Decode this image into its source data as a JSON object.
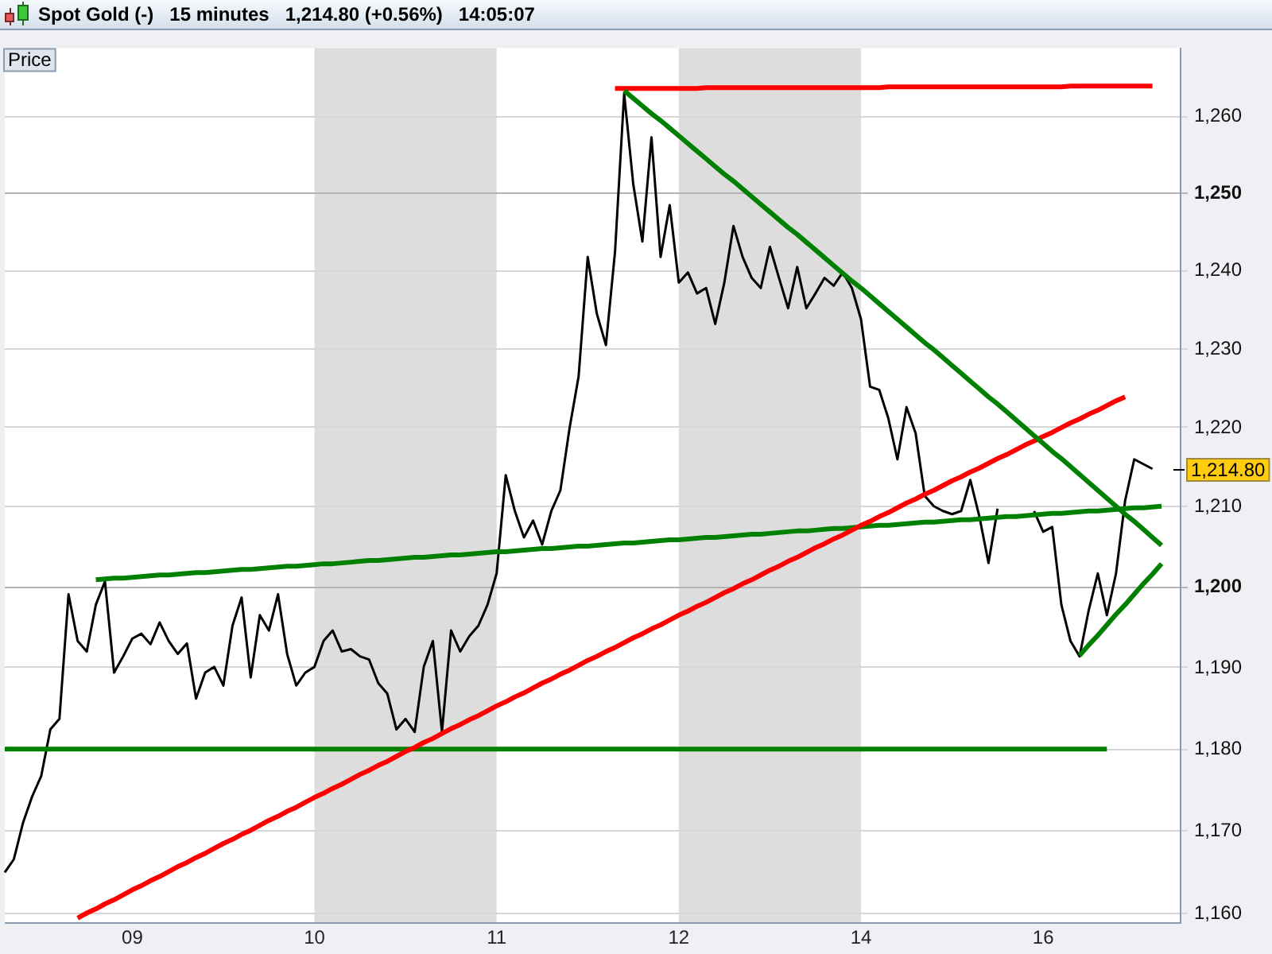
{
  "chart_data": {
    "type": "line",
    "title": "Spot Gold (-)   15 minutes   1,214.80 (+0.56%)   14:05:07",
    "annotations": [
      "Price",
      "1,214.80"
    ],
    "categories": [
      null,
      null,
      null,
      null,
      null,
      null,
      null,
      null,
      null,
      null,
      null,
      null,
      null,
      null,
      "09",
      null,
      null,
      null,
      null,
      null,
      null,
      null,
      null,
      null,
      null,
      null,
      null,
      null,
      null,
      null,
      null,
      null,
      null,
      null,
      "10",
      null,
      null,
      null,
      null,
      null,
      null,
      null,
      null,
      null,
      null,
      null,
      null,
      null,
      null,
      null,
      null,
      null,
      null,
      null,
      "11",
      null,
      null,
      null,
      null,
      null,
      null,
      null,
      null,
      null,
      null,
      null,
      null,
      null,
      null,
      null,
      null,
      null,
      null,
      null,
      "12",
      null,
      null,
      null,
      null,
      null,
      null,
      null,
      null,
      null,
      null,
      null,
      null,
      null,
      null,
      null,
      null,
      null,
      null,
      null,
      "14",
      null,
      null,
      null,
      null,
      null,
      null,
      null,
      null,
      null,
      null,
      null,
      null,
      null,
      null,
      null,
      null,
      null,
      null,
      null,
      "16",
      null,
      null,
      null,
      null,
      null,
      null,
      null,
      null,
      null,
      null,
      null,
      null,
      null,
      null,
      null
    ],
    "ylim": [
      1159,
      1269
    ],
    "yticks": [
      {
        "value": 1160,
        "label": "1,160"
      },
      {
        "value": 1170,
        "label": "1,170"
      },
      {
        "value": 1180,
        "label": "1,180"
      },
      {
        "value": 1190,
        "label": "1,190"
      },
      {
        "value": 1200,
        "label": "1,200"
      },
      {
        "value": 1210,
        "label": "1,210"
      },
      {
        "value": 1220,
        "label": "1,220"
      },
      {
        "value": 1230,
        "label": "1,230"
      },
      {
        "value": 1240,
        "label": "1,240"
      },
      {
        "value": 1250,
        "label": "1,250"
      },
      {
        "value": 1260,
        "label": "1,260"
      }
    ],
    "log": "y",
    "grid": "y",
    "bands": [
      {
        "axis": "x",
        "from": "10",
        "to": "11",
        "color": "#dddddd"
      },
      {
        "axis": "x",
        "from": "12",
        "to": "14",
        "color": "#dddddd"
      }
    ],
    "series": [
      {
        "color": "#000000",
        "values": [
          1165.0,
          1166.6,
          1171.0,
          1174.2,
          1176.7,
          1182.4,
          1183.7,
          1199.1,
          1193.3,
          1192.0,
          1197.8,
          1200.7,
          1189.4,
          1191.4,
          1193.6,
          1194.2,
          1192.9,
          1195.6,
          1193.3,
          1191.7,
          1193.0,
          1186.2,
          1189.4,
          1190.1,
          1187.8,
          1195.2,
          1198.7,
          1188.8,
          1196.5,
          1194.6,
          1199.1,
          1191.7,
          1187.8,
          1189.4,
          1190.1,
          1193.3,
          1194.6,
          1192.0,
          1192.3,
          1191.4,
          1191.0,
          1188.1,
          1186.8,
          1182.4,
          1183.7,
          1182.1,
          1190.1,
          1193.3,
          1182.1,
          1194.6,
          1192.0,
          1193.9,
          1195.2,
          1197.8,
          1201.7,
          1214.0,
          1209.5,
          1206.2,
          1208.3,
          1205.3,
          1209.5,
          1212.1,
          1219.9,
          1226.5,
          1241.8,
          1234.5,
          1230.5,
          1242.5,
          1263.0,
          1251.2,
          1243.8,
          1257.3,
          1241.8,
          1248.5,
          1238.5,
          1239.8,
          1237.1,
          1237.8,
          1233.2,
          1238.5,
          1245.8,
          1241.8,
          1239.1,
          1237.8,
          1243.1,
          1239.1,
          1235.2,
          1240.5,
          1235.2,
          1237.1,
          1239.1,
          1238.1,
          1239.8,
          1237.8,
          1233.8,
          1225.2,
          1224.8,
          1221.2,
          1216.0,
          1222.6,
          1219.3,
          1211.4,
          1210.1,
          1209.5,
          1209.1,
          1209.5,
          1213.4,
          1208.8,
          1203.0,
          1209.8,
          null,
          null,
          null,
          1209.5,
          1206.9,
          1207.5,
          1197.8,
          1193.3,
          1191.4,
          1197.1,
          1201.7,
          1196.5,
          1201.7,
          1210.8,
          1216.0,
          1215.4,
          1214.8,
          null,
          null,
          null
        ]
      },
      {
        "color": "#008000",
        "values": [
          1180,
          1180,
          1180,
          1180,
          1180,
          1180,
          1180,
          1180,
          1180,
          1180,
          1180,
          1180,
          1180,
          1180,
          1180,
          1180,
          1180,
          1180,
          1180,
          1180,
          1180,
          1180,
          1180,
          1180,
          1180,
          1180,
          1180,
          1180,
          1180,
          1180,
          1180,
          1180,
          1180,
          1180,
          1180,
          1180,
          1180,
          1180,
          1180,
          1180,
          1180,
          1180,
          1180,
          1180,
          1180,
          1180,
          1180,
          1180,
          1180,
          1180,
          1180,
          1180,
          1180,
          1180,
          1180,
          1180,
          1180,
          1180,
          1180,
          1180,
          1180,
          1180,
          1180,
          1180,
          1180,
          1180,
          1180,
          1180,
          1180,
          1180,
          1180,
          1180,
          1180,
          1180,
          1180,
          1180,
          1180,
          1180,
          1180,
          1180,
          1180,
          1180,
          1180,
          1180,
          1180,
          1180,
          1180,
          1180,
          1180,
          1180,
          1180,
          1180,
          1180,
          1180,
          1180,
          1180,
          1180,
          1180,
          1180,
          1180,
          1180,
          1180,
          1180,
          1180,
          1180,
          1180,
          1180,
          1180,
          1180,
          1180,
          1180,
          1180,
          1180,
          1180,
          1180,
          1180,
          1180,
          1180,
          1180,
          1180,
          1180,
          1180,
          null,
          null,
          null,
          null,
          null,
          null,
          null,
          null
        ]
      },
      {
        "color": "#008000",
        "values": [
          null,
          null,
          null,
          null,
          null,
          null,
          null,
          null,
          null,
          null,
          1200.9,
          1201.0,
          1201.1,
          1201.1,
          1201.2,
          1201.3,
          1201.4,
          1201.5,
          1201.5,
          1201.6,
          1201.7,
          1201.8,
          1201.8,
          1201.9,
          1202.0,
          1202.1,
          1202.2,
          1202.2,
          1202.3,
          1202.4,
          1202.5,
          1202.6,
          1202.6,
          1202.7,
          1202.8,
          1202.9,
          1202.9,
          1203.0,
          1203.1,
          1203.2,
          1203.3,
          1203.3,
          1203.4,
          1203.5,
          1203.6,
          1203.7,
          1203.7,
          1203.8,
          1203.9,
          1204.0,
          1204.0,
          1204.1,
          1204.2,
          1204.3,
          1204.4,
          1204.4,
          1204.5,
          1204.6,
          1204.7,
          1204.8,
          1204.8,
          1204.9,
          1205.0,
          1205.1,
          1205.1,
          1205.2,
          1205.3,
          1205.4,
          1205.5,
          1205.5,
          1205.6,
          1205.7,
          1205.8,
          1205.9,
          1205.9,
          1206.0,
          1206.1,
          1206.2,
          1206.2,
          1206.3,
          1206.4,
          1206.5,
          1206.6,
          1206.6,
          1206.7,
          1206.8,
          1206.9,
          1207.0,
          1207.0,
          1207.1,
          1207.2,
          1207.3,
          1207.3,
          1207.4,
          1207.5,
          1207.6,
          1207.7,
          1207.7,
          1207.8,
          1207.9,
          1208.0,
          1208.1,
          1208.1,
          1208.2,
          1208.3,
          1208.4,
          1208.4,
          1208.5,
          1208.6,
          1208.7,
          1208.8,
          1208.8,
          1208.9,
          1209.0,
          1209.1,
          1209.2,
          1209.2,
          1209.3,
          1209.4,
          1209.5,
          1209.5,
          1209.6,
          1209.7,
          1209.8,
          1209.9,
          1209.9,
          1210.0,
          1210.1,
          null,
          null
        ]
      },
      {
        "color": "#ff0000",
        "values": [
          null,
          null,
          null,
          null,
          null,
          null,
          null,
          null,
          1159.5,
          1160.1,
          1160.6,
          1161.2,
          1161.7,
          1162.3,
          1162.9,
          1163.4,
          1164.0,
          1164.5,
          1165.1,
          1165.7,
          1166.2,
          1166.8,
          1167.3,
          1167.9,
          1168.5,
          1169.0,
          1169.6,
          1170.1,
          1170.7,
          1171.3,
          1171.8,
          1172.4,
          1172.9,
          1173.5,
          1174.1,
          1174.6,
          1175.2,
          1175.7,
          1176.3,
          1176.9,
          1177.4,
          1178.0,
          1178.5,
          1179.1,
          1179.7,
          1180.2,
          1180.8,
          1181.3,
          1181.9,
          1182.5,
          1183.0,
          1183.6,
          1184.1,
          1184.7,
          1185.3,
          1185.8,
          1186.4,
          1186.9,
          1187.5,
          1188.1,
          1188.6,
          1189.2,
          1189.7,
          1190.3,
          1190.9,
          1191.4,
          1192.0,
          1192.5,
          1193.1,
          1193.7,
          1194.2,
          1194.8,
          1195.3,
          1195.9,
          1196.5,
          1197.0,
          1197.6,
          1198.1,
          1198.7,
          1199.3,
          1199.8,
          1200.4,
          1200.9,
          1201.5,
          1202.1,
          1202.6,
          1203.2,
          1203.7,
          1204.3,
          1204.9,
          1205.4,
          1206.0,
          1206.5,
          1207.1,
          1207.7,
          1208.2,
          1208.8,
          1209.3,
          1209.9,
          1210.5,
          1211.0,
          1211.6,
          1212.1,
          1212.7,
          1213.3,
          1213.8,
          1214.4,
          1214.9,
          1215.5,
          1216.1,
          1216.6,
          1217.2,
          1217.8,
          1218.3,
          1218.9,
          1219.4,
          1220.0,
          1220.6,
          1221.1,
          1221.7,
          1222.2,
          1222.8,
          1223.4,
          1223.9,
          null,
          null,
          null,
          null,
          null,
          null
        ]
      },
      {
        "color": "#ff0000",
        "values": [
          null,
          null,
          null,
          null,
          null,
          null,
          null,
          null,
          null,
          null,
          null,
          null,
          null,
          null,
          null,
          null,
          null,
          null,
          null,
          null,
          null,
          null,
          null,
          null,
          null,
          null,
          null,
          null,
          null,
          null,
          null,
          null,
          null,
          null,
          null,
          null,
          null,
          null,
          null,
          null,
          null,
          null,
          null,
          null,
          null,
          null,
          null,
          null,
          null,
          null,
          null,
          null,
          null,
          null,
          null,
          null,
          null,
          null,
          null,
          null,
          null,
          null,
          null,
          null,
          null,
          null,
          null,
          1263.7,
          1263.7,
          1263.7,
          1263.7,
          1263.7,
          1263.7,
          1263.7,
          1263.7,
          1263.7,
          1263.7,
          1263.8,
          1263.8,
          1263.8,
          1263.8,
          1263.8,
          1263.8,
          1263.8,
          1263.8,
          1263.8,
          1263.8,
          1263.8,
          1263.8,
          1263.8,
          1263.8,
          1263.8,
          1263.8,
          1263.8,
          1263.8,
          1263.8,
          1263.8,
          1263.9,
          1263.9,
          1263.9,
          1263.9,
          1263.9,
          1263.9,
          1263.9,
          1263.9,
          1263.9,
          1263.9,
          1263.9,
          1263.9,
          1263.9,
          1263.9,
          1263.9,
          1263.9,
          1263.9,
          1263.9,
          1263.9,
          1263.9,
          1264.0,
          1264.0,
          1264.0,
          1264.0,
          1264.0,
          1264.0,
          1264.0,
          1264.0,
          1264.0,
          1264.0,
          null,
          null,
          null
        ]
      },
      {
        "color": "#008000",
        "values": [
          null,
          null,
          null,
          null,
          null,
          null,
          null,
          null,
          null,
          null,
          null,
          null,
          null,
          null,
          null,
          null,
          null,
          null,
          null,
          null,
          null,
          null,
          null,
          null,
          null,
          null,
          null,
          null,
          null,
          null,
          null,
          null,
          null,
          null,
          null,
          null,
          null,
          null,
          null,
          null,
          null,
          null,
          null,
          null,
          null,
          null,
          null,
          null,
          null,
          null,
          null,
          null,
          null,
          null,
          null,
          null,
          null,
          null,
          null,
          null,
          null,
          null,
          null,
          null,
          null,
          null,
          null,
          null,
          1263.4,
          1262.4,
          1261.4,
          1260.4,
          1259.5,
          1258.5,
          1257.5,
          1256.5,
          1255.5,
          1254.5,
          1253.5,
          1252.5,
          1251.6,
          1250.6,
          1249.6,
          1248.6,
          1247.6,
          1246.6,
          1245.6,
          1244.7,
          1243.7,
          1242.7,
          1241.7,
          1240.7,
          1239.7,
          1238.7,
          1237.8,
          1236.8,
          1235.8,
          1234.8,
          1233.8,
          1232.8,
          1231.8,
          1230.8,
          1229.9,
          1228.9,
          1227.9,
          1226.9,
          1225.9,
          1224.9,
          1223.9,
          1223.0,
          1222.0,
          1221.0,
          1220.0,
          1219.0,
          1218.0,
          1217.0,
          1216.1,
          1215.1,
          1214.1,
          1213.1,
          1212.1,
          1211.1,
          1210.1,
          1209.1,
          1208.2,
          1207.2,
          1206.2,
          1205.2,
          null,
          null
        ]
      },
      {
        "color": "#008000",
        "values": [
          null,
          null,
          null,
          null,
          null,
          null,
          null,
          null,
          null,
          null,
          null,
          null,
          null,
          null,
          null,
          null,
          null,
          null,
          null,
          null,
          null,
          null,
          null,
          null,
          null,
          null,
          null,
          null,
          null,
          null,
          null,
          null,
          null,
          null,
          null,
          null,
          null,
          null,
          null,
          null,
          null,
          null,
          null,
          null,
          null,
          null,
          null,
          null,
          null,
          null,
          null,
          null,
          null,
          null,
          null,
          null,
          null,
          null,
          null,
          null,
          null,
          null,
          null,
          null,
          null,
          null,
          null,
          null,
          null,
          null,
          null,
          null,
          null,
          null,
          null,
          null,
          null,
          null,
          null,
          null,
          null,
          null,
          null,
          null,
          null,
          null,
          null,
          null,
          null,
          null,
          null,
          null,
          null,
          null,
          null,
          null,
          null,
          null,
          null,
          null,
          null,
          null,
          null,
          null,
          null,
          null,
          null,
          null,
          null,
          null,
          null,
          null,
          null,
          null,
          null,
          null,
          null,
          null,
          1191.5,
          1192.8,
          1194.0,
          1195.3,
          1196.6,
          1197.8,
          1199.1,
          1200.4,
          1201.6,
          1202.9,
          null,
          null
        ]
      }
    ]
  }
}
